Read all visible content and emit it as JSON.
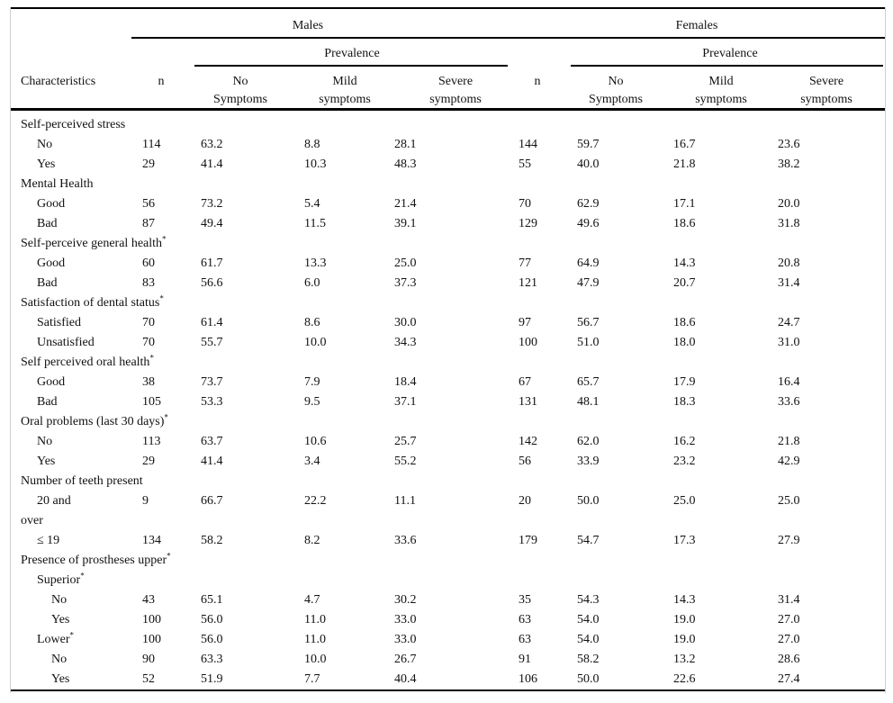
{
  "table": {
    "group_headers": {
      "males": "Males",
      "females": "Females"
    },
    "prevalence_label": "Prevalence",
    "col_headers": {
      "characteristics": "Characteristics",
      "n": "n",
      "no_symptoms": [
        "No",
        "Symptoms"
      ],
      "mild_symptoms": [
        "Mild",
        "symptoms"
      ],
      "severe_symptoms": [
        "Severe",
        "symptoms"
      ]
    },
    "colors": {
      "rule": "#000000",
      "side_border": "#cfcfcf",
      "text": "#111111",
      "background": "#ffffff"
    },
    "rows": [
      {
        "label": "Self-perceived stress",
        "indent": 1
      },
      {
        "label": "No",
        "indent": 2,
        "cells": [
          "114",
          "63.2",
          "8.8",
          "28.1",
          "144",
          "59.7",
          "16.7",
          "23.6"
        ]
      },
      {
        "label": "Yes",
        "indent": 2,
        "cells": [
          "29",
          "41.4",
          "10.3",
          "48.3",
          "55",
          "40.0",
          "21.8",
          "38.2"
        ]
      },
      {
        "label": "Mental Health",
        "indent": 1
      },
      {
        "label": "Good",
        "indent": 2,
        "cells": [
          "56",
          "73.2",
          "5.4",
          "21.4",
          "70",
          "62.9",
          "17.1",
          "20.0"
        ]
      },
      {
        "label": "Bad",
        "indent": 2,
        "cells": [
          "87",
          "49.4",
          "11.5",
          "39.1",
          "129",
          "49.6",
          "18.6",
          "31.8"
        ]
      },
      {
        "label": "Self-perceive general health",
        "sup": "*",
        "indent": 1
      },
      {
        "label": "Good",
        "indent": 2,
        "cells": [
          "60",
          "61.7",
          "13.3",
          "25.0",
          "77",
          "64.9",
          "14.3",
          "20.8"
        ]
      },
      {
        "label": "Bad",
        "indent": 2,
        "cells": [
          "83",
          "56.6",
          "6.0",
          "37.3",
          "121",
          "47.9",
          "20.7",
          "31.4"
        ]
      },
      {
        "label": "Satisfaction of dental status",
        "sup": "*",
        "indent": 1
      },
      {
        "label": "Satisfied",
        "indent": 2,
        "cells": [
          "70",
          "61.4",
          "8.6",
          "30.0",
          "97",
          "56.7",
          "18.6",
          "24.7"
        ]
      },
      {
        "label": "Unsatisfied",
        "indent": 2,
        "cells": [
          "70",
          "55.7",
          "10.0",
          "34.3",
          "100",
          "51.0",
          "18.0",
          "31.0"
        ]
      },
      {
        "label": "Self perceived oral health",
        "sup": "*",
        "indent": 1
      },
      {
        "label": "Good",
        "indent": 2,
        "cells": [
          "38",
          "73.7",
          "7.9",
          "18.4",
          "67",
          "65.7",
          "17.9",
          "16.4"
        ]
      },
      {
        "label": "Bad",
        "indent": 2,
        "cells": [
          "105",
          "53.3",
          "9.5",
          "37.1",
          "131",
          "48.1",
          "18.3",
          "33.6"
        ]
      },
      {
        "label": "Oral problems (last 30 days)",
        "sup": "*",
        "indent": 1
      },
      {
        "label": "No",
        "indent": 2,
        "cells": [
          "113",
          "63.7",
          "10.6",
          "25.7",
          "142",
          "62.0",
          "16.2",
          "21.8"
        ]
      },
      {
        "label": "Yes",
        "indent": 2,
        "cells": [
          "29",
          "41.4",
          "3.4",
          "55.2",
          "56",
          "33.9",
          "23.2",
          "42.9"
        ]
      },
      {
        "label": "Number of teeth present",
        "indent": 1
      },
      {
        "label": "20 and",
        "indent": 2,
        "cells": [
          "9",
          "66.7",
          "22.2",
          "11.1",
          "20",
          "50.0",
          "25.0",
          "25.0"
        ]
      },
      {
        "label": "over",
        "indent": 1
      },
      {
        "label": "≤ 19",
        "indent": 2,
        "cells": [
          "134",
          "58.2",
          "8.2",
          "33.6",
          "179",
          "54.7",
          "17.3",
          "27.9"
        ]
      },
      {
        "label": "Presence of prostheses upper",
        "sup": "*",
        "indent": 1
      },
      {
        "label": "Superior",
        "sup": "*",
        "indent": 2
      },
      {
        "label": "No",
        "indent": 3,
        "cells": [
          "43",
          "65.1",
          "4.7",
          "30.2",
          "35",
          "54.3",
          "14.3",
          "31.4"
        ]
      },
      {
        "label": "Yes",
        "indent": 3,
        "cells": [
          "100",
          "56.0",
          "11.0",
          "33.0",
          "63",
          "54.0",
          "19.0",
          "27.0"
        ]
      },
      {
        "label": "Lower",
        "sup": "*",
        "indent": 2,
        "cells": [
          "100",
          "56.0",
          "11.0",
          "33.0",
          "63",
          "54.0",
          "19.0",
          "27.0"
        ]
      },
      {
        "label": "No",
        "indent": 3,
        "cells": [
          "90",
          "63.3",
          "10.0",
          "26.7",
          "91",
          "58.2",
          "13.2",
          "28.6"
        ]
      },
      {
        "label": "Yes",
        "indent": 3,
        "cells": [
          "52",
          "51.9",
          "7.7",
          "40.4",
          "106",
          "50.0",
          "22.6",
          "27.4"
        ]
      }
    ]
  }
}
